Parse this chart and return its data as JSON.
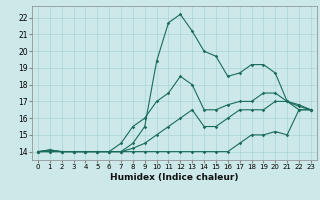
{
  "xlabel": "Humidex (Indice chaleur)",
  "background_color": "#cce8e8",
  "line_color": "#1a6b5a",
  "xlim": [
    -0.5,
    23.5
  ],
  "ylim": [
    13.5,
    22.7
  ],
  "yticks": [
    14,
    15,
    16,
    17,
    18,
    19,
    20,
    21,
    22
  ],
  "xticks": [
    0,
    1,
    2,
    3,
    4,
    5,
    6,
    7,
    8,
    9,
    10,
    11,
    12,
    13,
    14,
    15,
    16,
    17,
    18,
    19,
    20,
    21,
    22,
    23
  ],
  "lines": [
    {
      "x": [
        0,
        1,
        2,
        3,
        4,
        5,
        6,
        7,
        8,
        9,
        10,
        11,
        12,
        13,
        14,
        15,
        16,
        17,
        18,
        19,
        20,
        21,
        22,
        23
      ],
      "y": [
        14,
        14,
        14,
        14,
        14,
        14,
        14,
        14,
        14,
        14,
        14,
        14,
        14,
        14,
        14,
        14,
        14,
        14.5,
        15,
        15,
        15.2,
        15,
        16.5,
        16.5
      ]
    },
    {
      "x": [
        0,
        1,
        2,
        3,
        4,
        5,
        6,
        7,
        8,
        9,
        10,
        11,
        12,
        13,
        14,
        15,
        16,
        17,
        18,
        19,
        20,
        21,
        22,
        23
      ],
      "y": [
        14,
        14,
        14,
        14,
        14,
        14,
        14,
        14,
        14.2,
        14.5,
        15,
        15.5,
        16,
        16.5,
        15.5,
        15.5,
        16,
        16.5,
        16.5,
        16.5,
        17,
        17,
        16.5,
        16.5
      ]
    },
    {
      "x": [
        0,
        1,
        2,
        3,
        4,
        5,
        6,
        7,
        8,
        9,
        10,
        11,
        12,
        13,
        14,
        15,
        16,
        17,
        18,
        19,
        20,
        21,
        22,
        23
      ],
      "y": [
        14,
        14.1,
        14,
        14,
        14,
        14,
        14,
        14.5,
        15.5,
        16.0,
        17.0,
        17.5,
        18.5,
        18.0,
        16.5,
        16.5,
        16.8,
        17.0,
        17.0,
        17.5,
        17.5,
        17.0,
        16.8,
        16.5
      ]
    },
    {
      "x": [
        0,
        1,
        2,
        3,
        4,
        5,
        6,
        7,
        8,
        9,
        10,
        11,
        12,
        13,
        14,
        15,
        16,
        17,
        18,
        19,
        20,
        21,
        22,
        23
      ],
      "y": [
        14,
        14.1,
        14,
        14,
        14,
        14,
        14,
        14,
        14.5,
        15.5,
        19.4,
        21.7,
        22.2,
        21.2,
        20.0,
        19.7,
        18.5,
        18.7,
        19.2,
        19.2,
        18.7,
        17.0,
        16.7,
        16.5
      ]
    }
  ]
}
